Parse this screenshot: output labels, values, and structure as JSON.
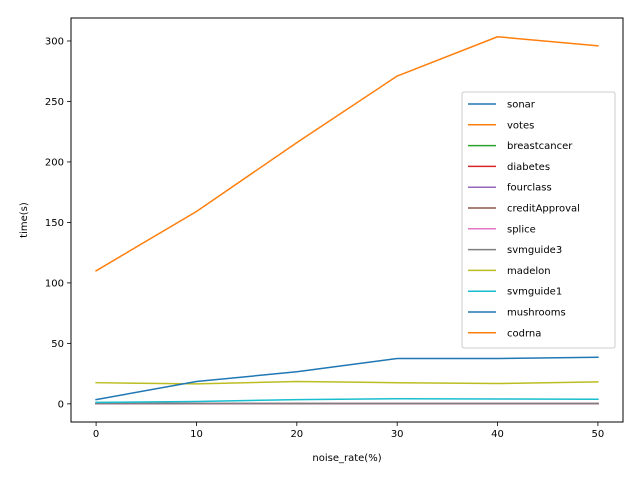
{
  "chart_data": {
    "type": "line",
    "xlabel": "noise_rate(%)",
    "ylabel": "time(s)",
    "x": [
      0,
      10,
      20,
      30,
      40,
      50
    ],
    "xticks": [
      0,
      10,
      20,
      30,
      40,
      50
    ],
    "yticks": [
      0,
      50,
      100,
      150,
      200,
      250,
      300
    ],
    "xlim": [
      -2.5,
      52.5
    ],
    "ylim": [
      -15,
      319
    ],
    "grid": false,
    "legend_position": "center-right",
    "series": [
      {
        "name": "sonar",
        "color": "#1f77b4",
        "values": [
          0.1,
          0.1,
          0.1,
          0.1,
          0.1,
          0.1
        ]
      },
      {
        "name": "votes",
        "color": "#ff7f0e",
        "values": [
          0.1,
          0.1,
          0.1,
          0.1,
          0.1,
          0.1
        ]
      },
      {
        "name": "breastcancer",
        "color": "#2ca02c",
        "values": [
          0.2,
          0.2,
          0.2,
          0.2,
          0.2,
          0.2
        ]
      },
      {
        "name": "diabetes",
        "color": "#d62728",
        "values": [
          0.2,
          0.2,
          0.2,
          0.2,
          0.2,
          0.2
        ]
      },
      {
        "name": "fourclass",
        "color": "#9467bd",
        "values": [
          0.2,
          0.2,
          0.2,
          0.2,
          0.2,
          0.2
        ]
      },
      {
        "name": "creditApproval",
        "color": "#8c564b",
        "values": [
          0.2,
          0.2,
          0.2,
          0.2,
          0.2,
          0.2
        ]
      },
      {
        "name": "splice",
        "color": "#e377c2",
        "values": [
          0.3,
          0.3,
          0.3,
          0.3,
          0.3,
          0.3
        ]
      },
      {
        "name": "svmguide3",
        "color": "#7f7f7f",
        "values": [
          0.3,
          0.3,
          0.3,
          0.3,
          0.3,
          0.3
        ]
      },
      {
        "name": "madelon",
        "color": "#bcbd22",
        "values": [
          17.5,
          16.5,
          18.5,
          17.5,
          16.8,
          18.2
        ]
      },
      {
        "name": "svmguide1",
        "color": "#17becf",
        "values": [
          1.2,
          2.0,
          3.5,
          4.2,
          4.0,
          3.8
        ]
      },
      {
        "name": "mushrooms",
        "color": "#1f77b4",
        "values": [
          3.5,
          18.5,
          26.5,
          37.5,
          37.5,
          38.5
        ]
      },
      {
        "name": "codrna",
        "color": "#ff7f0e",
        "values": [
          110,
          159,
          216,
          271,
          303.5,
          296
        ]
      }
    ]
  }
}
